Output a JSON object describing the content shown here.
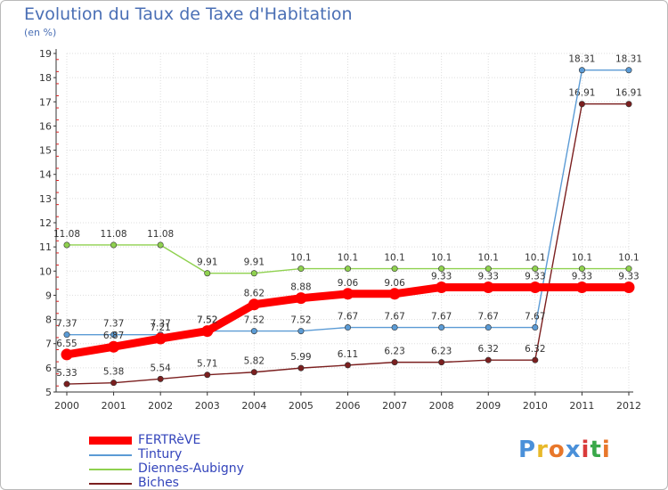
{
  "chart_data": {
    "type": "line",
    "title": "Evolution du Taux de Taxe d'Habitation",
    "subtitle": "(en %)",
    "x": [
      "2000",
      "2001",
      "2002",
      "2003",
      "2004",
      "2005",
      "2006",
      "2007",
      "2008",
      "2009",
      "2010",
      "2011",
      "2012"
    ],
    "ylim": [
      5,
      19
    ],
    "yticks": [
      "5",
      "6",
      "7",
      "8",
      "9",
      "10",
      "11",
      "12",
      "13",
      "14",
      "15",
      "16",
      "17",
      "18",
      "19"
    ],
    "grid": true,
    "series": [
      {
        "name": "FERTRèVE",
        "color": "#ff0000",
        "values": [
          6.55,
          6.87,
          7.21,
          7.52,
          8.62,
          8.88,
          9.06,
          9.06,
          9.33,
          9.33,
          9.33,
          9.33,
          9.33
        ],
        "labels": [
          "6.55",
          "6.87",
          "7.21",
          "7.52",
          "8.62",
          "8.88",
          "9.06",
          "9.06",
          "9.33",
          "9.33",
          "9.33",
          "9.33",
          "9.33"
        ]
      },
      {
        "name": "Tintury",
        "color": "#5b9bd5",
        "values": [
          7.37,
          7.37,
          7.37,
          7.52,
          7.52,
          7.52,
          7.67,
          7.67,
          7.67,
          7.67,
          7.67,
          18.31,
          18.31
        ],
        "labels": [
          "7.37",
          "7.37",
          "7.37",
          "7.52",
          "7.52",
          "7.52",
          "7.67",
          "7.67",
          "7.67",
          "7.67",
          "7.67",
          "18.31",
          "18.31"
        ]
      },
      {
        "name": "Diennes-Aubigny",
        "color": "#8fd14f",
        "values": [
          11.08,
          11.08,
          11.08,
          9.91,
          9.91,
          10.1,
          10.1,
          10.1,
          10.1,
          10.1,
          10.1,
          10.1,
          10.1
        ],
        "labels": [
          "11.08",
          "11.08",
          "11.08",
          "9.91",
          "9.91",
          "10.1",
          "10.1",
          "10.1",
          "10.1",
          "10.1",
          "10.1",
          "10.1",
          "10.1"
        ]
      },
      {
        "name": "Biches",
        "color": "#7b1f1f",
        "values": [
          5.33,
          5.38,
          5.54,
          5.71,
          5.82,
          5.99,
          6.11,
          6.23,
          6.23,
          6.32,
          6.32,
          16.91,
          16.91
        ],
        "labels": [
          "5.33",
          "5.38",
          "5.54",
          "5.71",
          "5.82",
          "5.99",
          "6.11",
          "6.23",
          "6.23",
          "6.32",
          "6.32",
          "16.91",
          "16.91"
        ]
      }
    ]
  },
  "legend": {
    "items": [
      {
        "label": "FERTRèVE",
        "color": "#ff0000"
      },
      {
        "label": "Tintury",
        "color": "#5b9bd5"
      },
      {
        "label": "Diennes-Aubigny",
        "color": "#8fd14f"
      },
      {
        "label": "Biches",
        "color": "#7b1f1f"
      }
    ]
  },
  "logo": {
    "text": "Proxiti",
    "colors": [
      "#4a90d9",
      "#e8b92a",
      "#e8772a",
      "#4a90d9",
      "#d93a3a",
      "#3aa84a",
      "#e8772a"
    ]
  }
}
